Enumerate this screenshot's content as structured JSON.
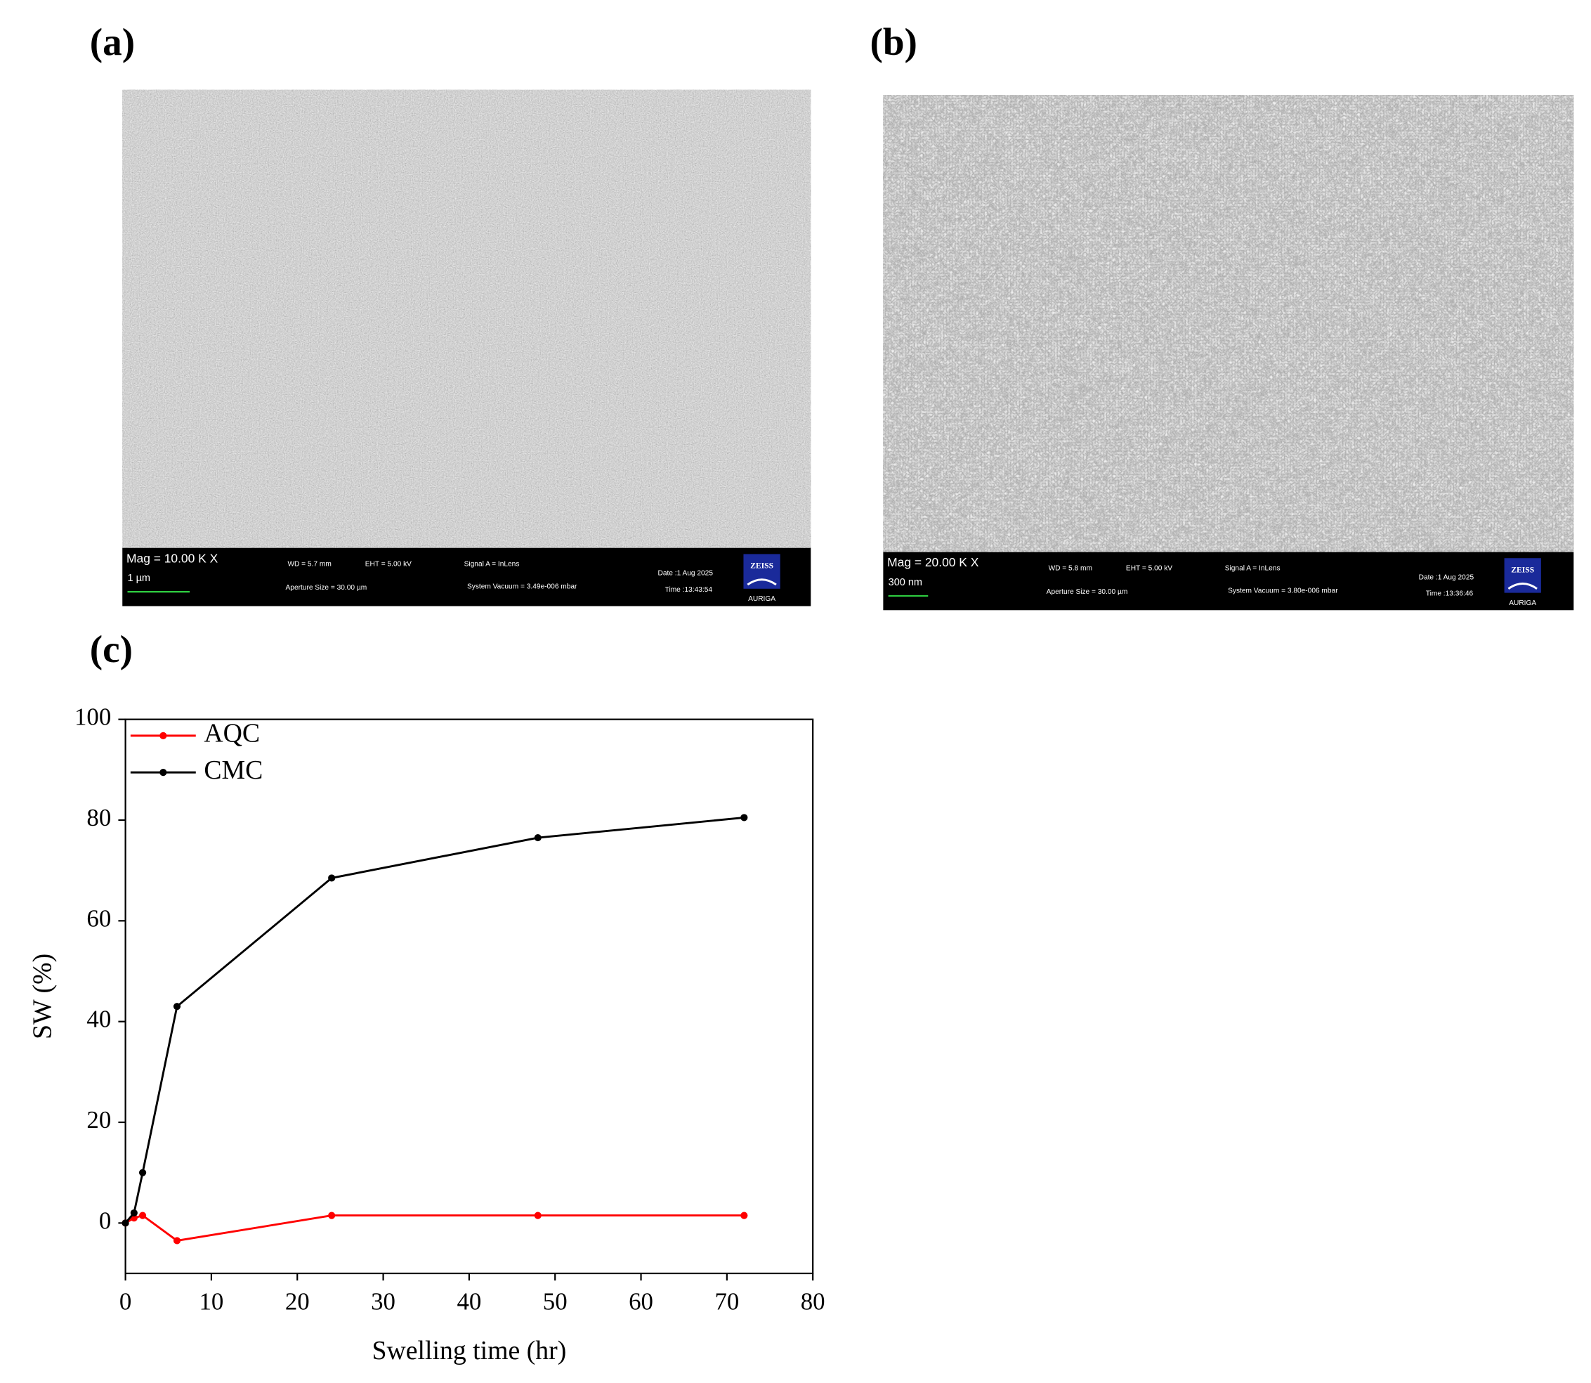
{
  "labels": [
    "(a)",
    "(b)",
    "(c)"
  ],
  "sem": [
    {
      "mag": "Mag =  10.00 K X",
      "scale": "1 µm",
      "wd": "WD =  5.7 mm",
      "eht": "EHT =  5.00 kV",
      "signal": "Signal A = InLens",
      "aperture": "Aperture Size = 30.00 µm",
      "vacuum": "System Vacuum = 3.49e-006 mbar",
      "date": "Date :1 Aug 2025",
      "time": "Time :13:43:54",
      "brand": "ZEISS",
      "model": "AURIGA"
    },
    {
      "mag": "Mag =  20.00 K X",
      "scale": "300 nm",
      "wd": "WD =  5.8 mm",
      "eht": "EHT =  5.00 kV",
      "signal": "Signal A = InLens",
      "aperture": "Aperture Size = 30.00 µm",
      "vacuum": "System Vacuum = 3.80e-006 mbar",
      "date": "Date :1 Aug 2025",
      "time": "Time :13:36:46",
      "brand": "ZEISS",
      "model": "AURIGA"
    }
  ],
  "chart_data": {
    "type": "line",
    "x_label": "Swelling time (hr)",
    "y_label": "SW (%)",
    "x": [
      0,
      1,
      2,
      6,
      24,
      48,
      72
    ],
    "series": [
      {
        "name": "AQC",
        "color": "#ff0000",
        "values": [
          0,
          1,
          1.5,
          -3.5,
          1.5,
          1.5,
          1.5
        ]
      },
      {
        "name": "CMC",
        "color": "#000000",
        "values": [
          0,
          2,
          10,
          43,
          68.5,
          76.5,
          80.5
        ]
      }
    ],
    "xlim": [
      0,
      80
    ],
    "xticks": [
      0,
      10,
      20,
      30,
      40,
      50,
      60,
      70,
      80
    ],
    "ylim": [
      -10,
      100
    ],
    "yticks": [
      0,
      20,
      40,
      60,
      80,
      100
    ],
    "legend": "upper left"
  }
}
